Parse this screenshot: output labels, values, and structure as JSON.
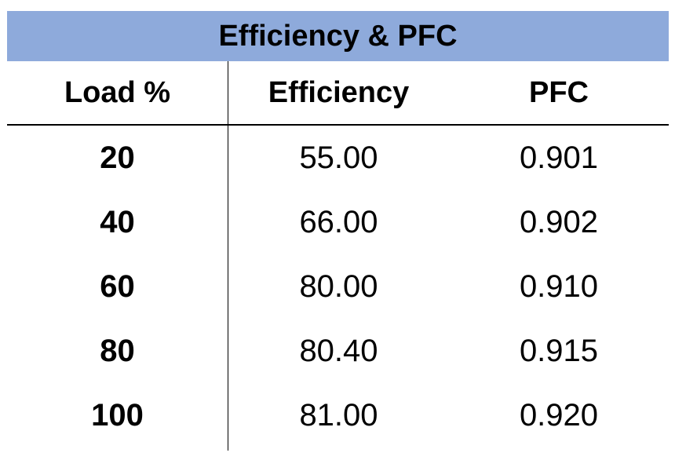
{
  "table": {
    "title": "Efficiency & PFC",
    "header_bg": "#8eaadb",
    "columns": [
      "Load %",
      "Efficiency",
      "PFC"
    ],
    "rows": [
      [
        "20",
        "55.00",
        "0.901"
      ],
      [
        "40",
        "66.00",
        "0.902"
      ],
      [
        "60",
        "80.00",
        "0.910"
      ],
      [
        "80",
        "80.40",
        "0.915"
      ],
      [
        "100",
        "81.00",
        "0.920"
      ]
    ]
  }
}
